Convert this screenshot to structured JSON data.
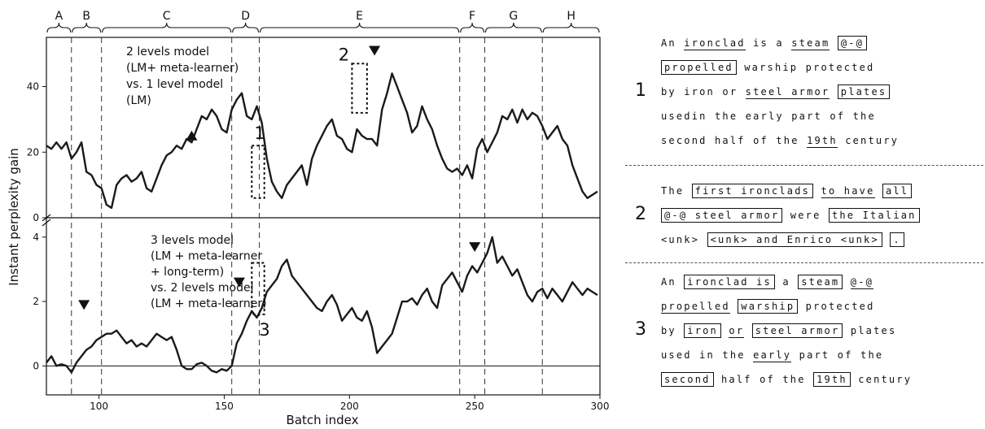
{
  "chart_data": {
    "type": "line",
    "xlabel": "Batch index",
    "ylabel": "Instant perplexity gain",
    "xlim": [
      79,
      300
    ],
    "x_ticks": [
      100,
      150,
      200,
      250,
      300
    ],
    "segments": [
      {
        "label": "A",
        "start": 79,
        "end": 89
      },
      {
        "label": "B",
        "start": 89,
        "end": 101
      },
      {
        "label": "C",
        "start": 101,
        "end": 153
      },
      {
        "label": "D",
        "start": 153,
        "end": 164
      },
      {
        "label": "E",
        "start": 164,
        "end": 244
      },
      {
        "label": "F",
        "start": 244,
        "end": 254
      },
      {
        "label": "G",
        "start": 254,
        "end": 277
      },
      {
        "label": "H",
        "start": 277,
        "end": 300
      }
    ],
    "panels": [
      {
        "annotation": [
          "2 levels model",
          "(LM+ meta-learner)",
          "vs. 1 level model",
          "(LM)"
        ],
        "ylim": [
          0,
          55
        ],
        "y_ticks": [
          0,
          20,
          40
        ],
        "series": [
          {
            "x": [
              79,
              81,
              83,
              85,
              87,
              89,
              91,
              93,
              95,
              97,
              99,
              101,
              103,
              105,
              107,
              109,
              111,
              113,
              115,
              117,
              119,
              121,
              123,
              125,
              127,
              129,
              131,
              133,
              135,
              137,
              139,
              141,
              143,
              145,
              147,
              149,
              151,
              153,
              155,
              157,
              159,
              161,
              163,
              165,
              167,
              169,
              171,
              173,
              175,
              177,
              179,
              181,
              183,
              185,
              187,
              189,
              191,
              193,
              195,
              197,
              199,
              201,
              203,
              205,
              207,
              209,
              211,
              213,
              215,
              217,
              219,
              221,
              223,
              225,
              227,
              229,
              231,
              233,
              235,
              237,
              239,
              241,
              243,
              245,
              247,
              249,
              251,
              253,
              255,
              257,
              259,
              261,
              263,
              265,
              267,
              269,
              271,
              273,
              275,
              277,
              279,
              281,
              283,
              285,
              287,
              289,
              291,
              293,
              295,
              297,
              299
            ],
            "y": [
              22,
              21,
              23,
              21,
              23,
              18,
              20,
              23,
              14,
              13,
              10,
              9,
              4,
              3,
              10,
              12,
              13,
              11,
              12,
              14,
              9,
              8,
              12,
              16,
              19,
              20,
              22,
              21,
              24,
              23,
              27,
              31,
              30,
              33,
              31,
              27,
              26,
              33,
              36,
              38,
              31,
              30,
              34,
              29,
              18,
              11,
              8,
              6,
              10,
              12,
              14,
              16,
              10,
              18,
              22,
              25,
              28,
              30,
              25,
              24,
              21,
              20,
              27,
              25,
              24,
              24,
              22,
              33,
              38,
              44,
              40,
              36,
              32,
              26,
              28,
              34,
              30,
              27,
              22,
              18,
              15,
              14,
              15,
              13,
              16,
              12,
              21,
              24,
              20,
              23,
              26,
              31,
              30,
              33,
              29,
              33,
              30,
              32,
              31,
              28,
              24,
              26,
              28,
              24,
              22,
              16,
              12,
              8,
              6,
              7,
              8
            ]
          }
        ],
        "triangles": [
          {
            "x": 137,
            "y": 25,
            "direction": "up"
          },
          {
            "x": 210,
            "y": 51,
            "direction": "down"
          }
        ],
        "markers": [
          {
            "label": "1",
            "x_start": 161,
            "x_end": 166,
            "y_low": 6,
            "y_high": 22
          },
          {
            "label": "2",
            "x_start": 201,
            "x_end": 207,
            "y_low": 32,
            "y_high": 47
          }
        ]
      },
      {
        "annotation": [
          "3 levels model",
          "(LM + meta-learner",
          "+ long-term)",
          "vs. 2 levels model",
          "(LM + meta-learner)"
        ],
        "ylim": [
          -0.9,
          4.6
        ],
        "y_ticks": [
          0,
          2,
          4
        ],
        "series": [
          {
            "x": [
              79,
              81,
              83,
              85,
              87,
              89,
              91,
              93,
              95,
              97,
              99,
              101,
              103,
              105,
              107,
              109,
              111,
              113,
              115,
              117,
              119,
              121,
              123,
              125,
              127,
              129,
              131,
              133,
              135,
              137,
              139,
              141,
              143,
              145,
              147,
              149,
              151,
              153,
              155,
              157,
              159,
              161,
              163,
              165,
              167,
              169,
              171,
              173,
              175,
              177,
              179,
              181,
              183,
              185,
              187,
              189,
              191,
              193,
              195,
              197,
              199,
              201,
              203,
              205,
              207,
              209,
              211,
              213,
              215,
              217,
              219,
              221,
              223,
              225,
              227,
              229,
              231,
              233,
              235,
              237,
              239,
              241,
              243,
              245,
              247,
              249,
              251,
              253,
              255,
              257,
              259,
              261,
              263,
              265,
              267,
              269,
              271,
              273,
              275,
              277,
              279,
              281,
              283,
              285,
              287,
              289,
              291,
              293,
              295,
              297,
              299
            ],
            "y": [
              0.1,
              0.3,
              0.0,
              0.05,
              0.0,
              -0.2,
              0.1,
              0.3,
              0.5,
              0.6,
              0.8,
              0.9,
              1.0,
              1.0,
              1.1,
              0.9,
              0.7,
              0.8,
              0.6,
              0.7,
              0.6,
              0.8,
              1.0,
              0.9,
              0.8,
              0.9,
              0.5,
              0.0,
              -0.1,
              -0.1,
              0.05,
              0.1,
              0.0,
              -0.15,
              -0.2,
              -0.1,
              -0.15,
              0.0,
              0.7,
              1.0,
              1.4,
              1.7,
              1.5,
              1.8,
              2.3,
              2.5,
              2.7,
              3.1,
              3.3,
              2.8,
              2.6,
              2.4,
              2.2,
              2.0,
              1.8,
              1.7,
              2.0,
              2.2,
              1.9,
              1.4,
              1.6,
              1.8,
              1.5,
              1.4,
              1.7,
              1.2,
              0.4,
              0.6,
              0.8,
              1.0,
              1.5,
              2.0,
              2.0,
              2.1,
              1.9,
              2.2,
              2.4,
              2.0,
              1.8,
              2.5,
              2.7,
              2.9,
              2.6,
              2.3,
              2.8,
              3.1,
              2.9,
              3.2,
              3.5,
              4.0,
              3.2,
              3.4,
              3.1,
              2.8,
              3.0,
              2.6,
              2.2,
              2.0,
              2.3,
              2.4,
              2.1,
              2.4,
              2.2,
              2.0,
              2.3,
              2.6,
              2.4,
              2.2,
              2.4,
              2.3,
              2.2
            ]
          }
        ],
        "triangles": [
          {
            "x": 94,
            "y": 1.9,
            "direction": "down"
          },
          {
            "x": 156,
            "y": 2.6,
            "direction": "down"
          },
          {
            "x": 250,
            "y": 3.7,
            "direction": "down"
          }
        ],
        "markers": [
          {
            "label": "3",
            "x_start": 161,
            "x_end": 166,
            "y_low": 1.6,
            "y_high": 3.2
          }
        ]
      }
    ]
  },
  "examples": [
    {
      "number": "1",
      "lines": [
        [
          {
            "t": "An"
          },
          {
            "t": " "
          },
          {
            "t": "ironclad",
            "s": "u"
          },
          {
            "t": " is a "
          },
          {
            "t": "steam",
            "s": "u"
          },
          {
            "t": " "
          },
          {
            "t": "@-@",
            "s": "b"
          }
        ],
        [
          {
            "t": "propelled",
            "s": "b"
          },
          {
            "t": " warship protected"
          }
        ],
        [
          {
            "t": "by iron or "
          },
          {
            "t": "steel armor",
            "s": "u"
          },
          {
            "t": " "
          },
          {
            "t": "plates",
            "s": "b"
          }
        ],
        [
          {
            "t": "usedin the early part of the"
          }
        ],
        [
          {
            "t": "second half of the "
          },
          {
            "t": "19th",
            "s": "u"
          },
          {
            "t": " century"
          }
        ]
      ]
    },
    {
      "number": "2",
      "lines": [
        [
          {
            "t": "The "
          },
          {
            "t": "first ironclads",
            "s": "b"
          },
          {
            "t": " "
          },
          {
            "t": "to have",
            "s": "u"
          },
          {
            "t": " "
          },
          {
            "t": "all",
            "s": "b"
          }
        ],
        [
          {
            "t": "@-@ steel armor",
            "s": "b"
          },
          {
            "t": " were "
          },
          {
            "t": "the Italian",
            "s": "b"
          }
        ],
        [
          {
            "t": "<unk> "
          },
          {
            "t": "<unk> and Enrico <unk>",
            "s": "b"
          },
          {
            "t": " "
          },
          {
            "t": ".",
            "s": "b"
          }
        ]
      ]
    },
    {
      "number": "3",
      "lines": [
        [
          {
            "t": "An "
          },
          {
            "t": "ironclad is",
            "s": "b"
          },
          {
            "t": " a "
          },
          {
            "t": "steam",
            "s": "b"
          },
          {
            "t": " "
          },
          {
            "t": "@-@",
            "s": "u"
          }
        ],
        [
          {
            "t": "propelled",
            "s": "u"
          },
          {
            "t": " "
          },
          {
            "t": "warship",
            "s": "b"
          },
          {
            "t": " protected"
          }
        ],
        [
          {
            "t": "by "
          },
          {
            "t": "iron",
            "s": "b"
          },
          {
            "t": " "
          },
          {
            "t": "or",
            "s": "u"
          },
          {
            "t": " "
          },
          {
            "t": "steel armor",
            "s": "b"
          },
          {
            "t": " plates"
          }
        ],
        [
          {
            "t": "used in the "
          },
          {
            "t": "early",
            "s": "u"
          },
          {
            "t": " part of the"
          }
        ],
        [
          {
            "t": "second",
            "s": "b"
          },
          {
            "t": " half of the "
          },
          {
            "t": "19th",
            "s": "b"
          },
          {
            "t": " century"
          }
        ]
      ]
    }
  ]
}
